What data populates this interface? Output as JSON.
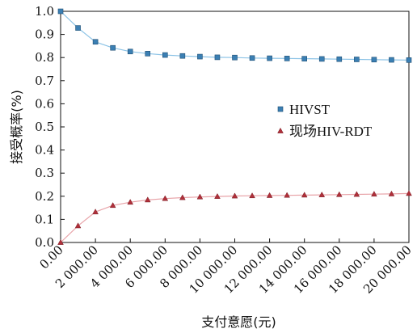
{
  "chart_data": {
    "type": "line",
    "xlabel": "支付意愿(元)",
    "ylabel": "接受概率(%)",
    "xlim": [
      0,
      20000
    ],
    "ylim": [
      0,
      1.0
    ],
    "x_ticks": [
      "0.00",
      "2 000.00",
      "4 000.00",
      "6 000.00",
      "8 000.00",
      "10 000.00",
      "12 000.00",
      "14 000.00",
      "16 000.00",
      "18 000.00",
      "20 000.00"
    ],
    "y_ticks": [
      "0.0",
      "0.1",
      "0.2",
      "0.3",
      "0.4",
      "0.5",
      "0.6",
      "0.7",
      "0.8",
      "0.9",
      "1.0"
    ],
    "grid": false,
    "legend_position": "right",
    "x": [
      0,
      1000,
      2000,
      3000,
      4000,
      5000,
      6000,
      7000,
      8000,
      9000,
      10000,
      11000,
      12000,
      13000,
      14000,
      15000,
      16000,
      17000,
      18000,
      19000,
      20000
    ],
    "series": [
      {
        "name": "HIVST",
        "marker": "square",
        "marker_color": "#3b7fb3",
        "line_color": "#8cc3e6",
        "values": [
          1.0,
          0.928,
          0.868,
          0.842,
          0.826,
          0.817,
          0.811,
          0.807,
          0.804,
          0.801,
          0.8,
          0.798,
          0.797,
          0.796,
          0.795,
          0.794,
          0.793,
          0.792,
          0.791,
          0.79,
          0.789
        ]
      },
      {
        "name": "现场HIV-RDT",
        "marker": "triangle",
        "marker_color": "#b0303a",
        "line_color": "#e8a3a8",
        "values": [
          0.0,
          0.072,
          0.132,
          0.16,
          0.174,
          0.184,
          0.19,
          0.194,
          0.197,
          0.199,
          0.201,
          0.202,
          0.203,
          0.204,
          0.205,
          0.206,
          0.207,
          0.208,
          0.209,
          0.21,
          0.212
        ]
      }
    ]
  }
}
